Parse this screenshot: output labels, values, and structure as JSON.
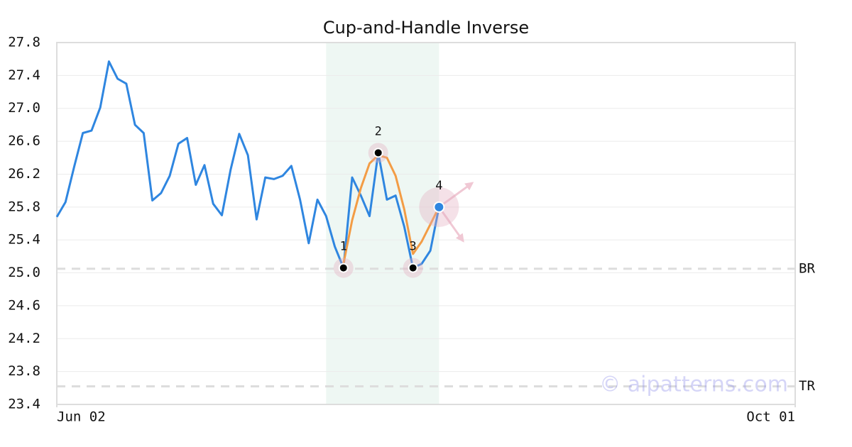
{
  "chart_data": {
    "type": "line",
    "title": "Cup-and-Handle Inverse",
    "x": [
      0,
      1,
      2,
      3,
      4,
      5,
      6,
      7,
      8,
      9,
      10,
      11,
      12,
      13,
      14,
      15,
      16,
      17,
      18,
      19,
      20,
      21,
      22,
      23,
      24,
      25,
      26,
      27,
      28,
      29,
      30,
      31,
      32,
      33,
      34,
      35,
      36,
      37,
      38,
      39,
      40,
      41,
      42,
      43,
      44
    ],
    "xlim": [
      0,
      85
    ],
    "xticks": [
      {
        "value": 0,
        "label": "Jun 02"
      },
      {
        "value": 85,
        "label": "Oct 01"
      }
    ],
    "ylim": [
      23.4,
      27.8
    ],
    "yticks": [
      23.4,
      23.8,
      24.2,
      24.6,
      {
        "value": 25,
        "label": "25.0"
      },
      25.4,
      25.8,
      26.2,
      26.6,
      {
        "value": 27,
        "label": "27.0"
      },
      27.4,
      27.8
    ],
    "grid": true,
    "series": [
      {
        "color": "#2f86e0",
        "values": [
          25.68,
          25.86,
          26.29,
          26.7,
          26.73,
          27.01,
          27.57,
          27.36,
          27.3,
          26.8,
          26.7,
          25.88,
          25.97,
          26.18,
          26.57,
          26.64,
          26.07,
          26.31,
          25.84,
          25.7,
          26.25,
          26.69,
          26.43,
          25.65,
          26.16,
          26.14,
          26.18,
          26.3,
          25.89,
          25.36,
          25.89,
          25.69,
          25.32,
          25.06,
          26.16,
          25.94,
          25.69,
          26.46,
          25.89,
          25.94,
          25.56,
          25.06,
          25.11,
          25.27,
          25.8
        ]
      },
      {
        "color": "#f39c45",
        "values": [
          null,
          null,
          null,
          null,
          null,
          null,
          null,
          null,
          null,
          null,
          null,
          null,
          null,
          null,
          null,
          null,
          null,
          null,
          null,
          null,
          null,
          null,
          null,
          null,
          null,
          null,
          null,
          null,
          null,
          null,
          null,
          null,
          null,
          25.11,
          25.64,
          26.03,
          26.33,
          26.43,
          26.4,
          26.18,
          25.77,
          25.23,
          25.38,
          25.59,
          25.8
        ]
      }
    ],
    "highlight": {
      "xrange": [
        31,
        44
      ],
      "color": "#eef7f3"
    },
    "pattern_points": [
      {
        "label": "1",
        "x": 33,
        "y": 25.06
      },
      {
        "label": "2",
        "x": 37,
        "y": 26.46
      },
      {
        "label": "3",
        "x": 41,
        "y": 25.06
      },
      {
        "label": "4",
        "x": 44,
        "y": 25.8
      }
    ],
    "levels": [
      {
        "label": "BR",
        "value": 25.05
      },
      {
        "label": "TR",
        "value": 23.62
      }
    ],
    "watermark": "© aipatterns.com"
  }
}
